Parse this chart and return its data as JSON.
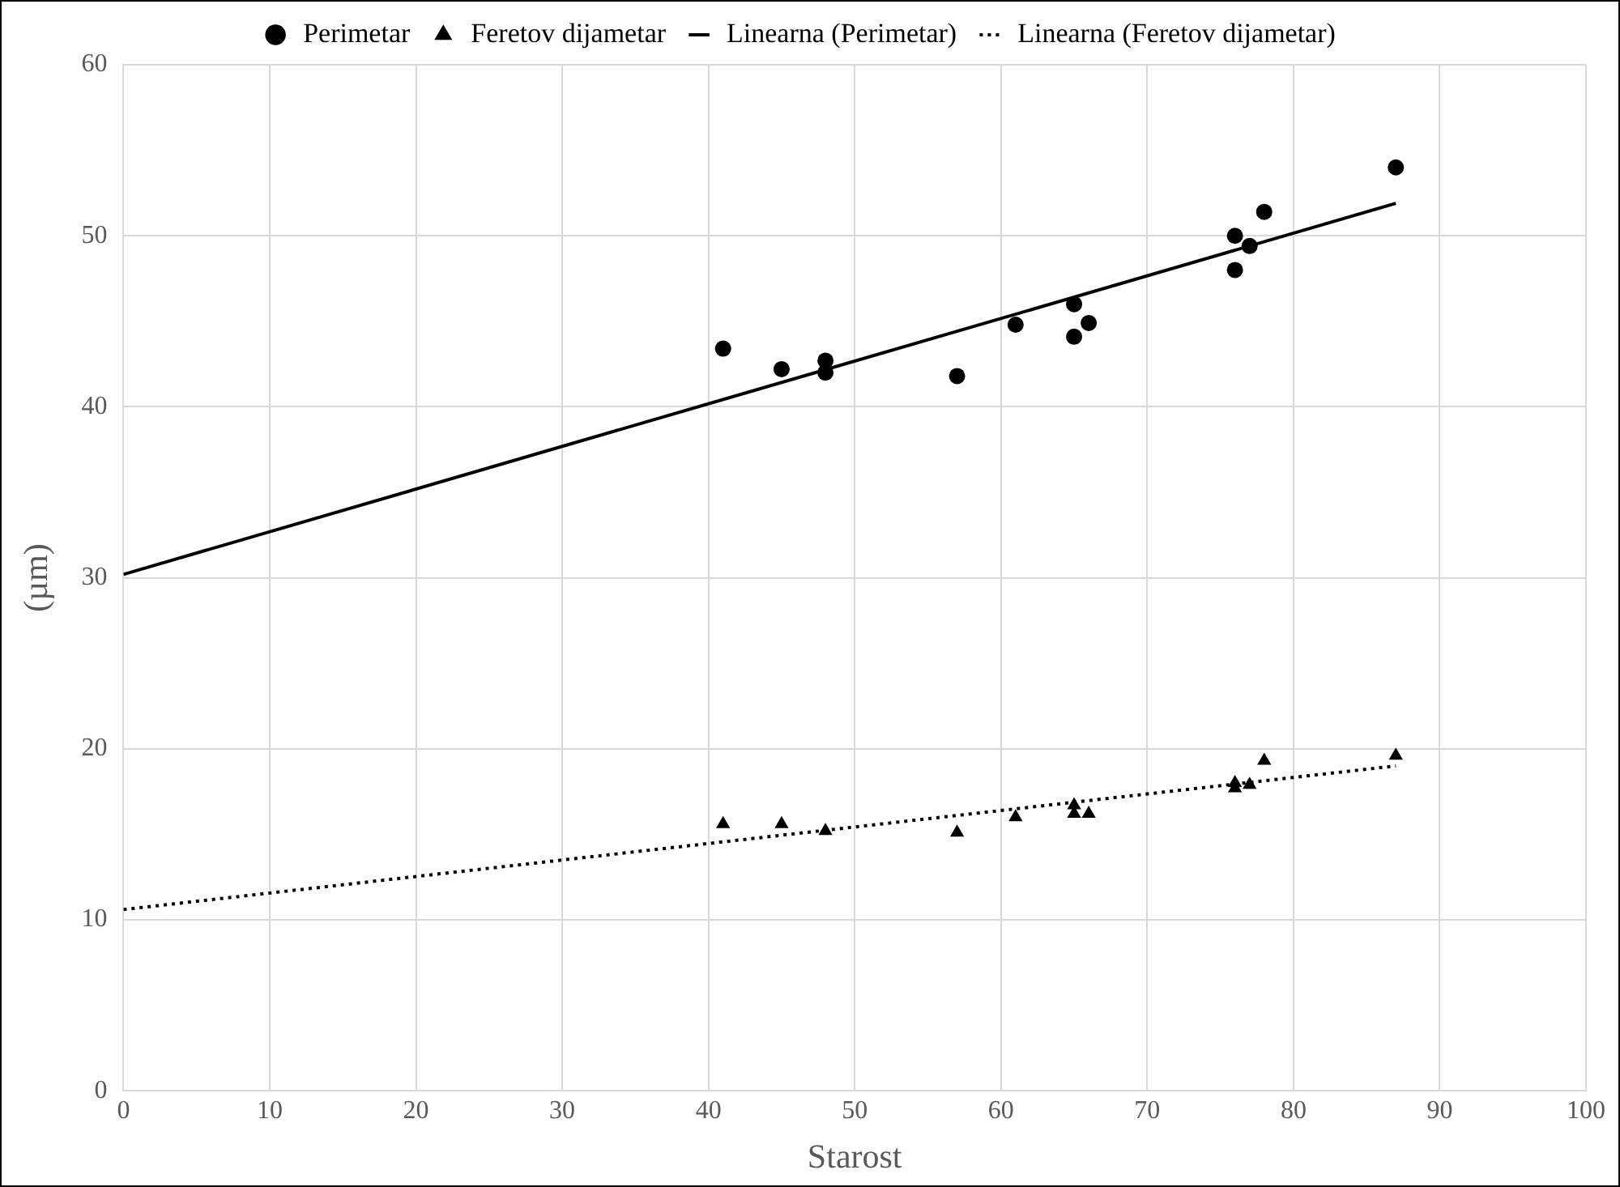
{
  "chart_data": {
    "type": "scatter",
    "xlabel": "Starost",
    "ylabel": "(µm)",
    "xlim": [
      0,
      100
    ],
    "ylim": [
      0,
      60
    ],
    "xticks": [
      0,
      10,
      20,
      30,
      40,
      50,
      60,
      70,
      80,
      90,
      100
    ],
    "yticks": [
      0,
      10,
      20,
      30,
      40,
      50,
      60
    ],
    "grid": true,
    "legend": "top",
    "series": [
      {
        "name": "Perimetar",
        "marker": "circle",
        "color": "#000000",
        "x": [
          41,
          45,
          48,
          48,
          57,
          61,
          65,
          65,
          66,
          76,
          76,
          77,
          78,
          87
        ],
        "values": [
          43.4,
          42.2,
          42.7,
          42.0,
          41.8,
          44.8,
          46.0,
          44.1,
          44.9,
          50.0,
          48.0,
          49.4,
          51.4,
          54.0
        ]
      },
      {
        "name": "Feretov dijametar",
        "marker": "triangle",
        "color": "#000000",
        "x": [
          41,
          45,
          48,
          57,
          61,
          65,
          65,
          66,
          76,
          76,
          77,
          78,
          87
        ],
        "values": [
          15.6,
          15.6,
          15.2,
          15.1,
          16.0,
          16.7,
          16.2,
          16.2,
          18.0,
          17.7,
          17.9,
          19.3,
          19.6
        ]
      },
      {
        "name": "Linearna (Perimetar)",
        "type": "line",
        "line_style": "solid",
        "color": "#000000",
        "x": [
          0,
          87
        ],
        "values": [
          30.2,
          51.9
        ]
      },
      {
        "name": "Linearna (Feretov dijametar)",
        "type": "line",
        "line_style": "dotted",
        "color": "#000000",
        "x": [
          0,
          87
        ],
        "values": [
          10.6,
          19.0
        ]
      }
    ]
  }
}
